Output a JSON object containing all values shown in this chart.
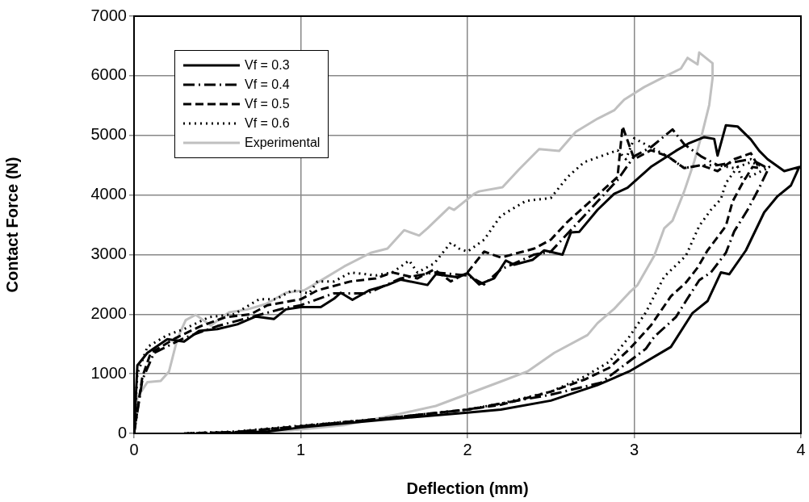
{
  "chart_data": {
    "type": "line",
    "xlabel": "Deflection (mm)",
    "ylabel": "Contact Force (N)",
    "xlim": [
      0,
      4
    ],
    "xticks": [
      0,
      1,
      2,
      3,
      4
    ],
    "ylim": [
      0,
      7000
    ],
    "yticks": [
      0,
      1000,
      2000,
      3000,
      4000,
      5000,
      6000,
      7000
    ],
    "grid": true,
    "legend": "top left",
    "marker": "none",
    "series": [
      {
        "name": "Vf = 0.3",
        "color": "#000000",
        "line_style": "solid",
        "x": [
          0,
          0.02,
          0.08,
          0.2,
          0.3,
          0.39,
          0.5,
          0.62,
          0.73,
          0.84,
          0.91,
          1.0,
          1.12,
          1.2,
          1.24,
          1.31,
          1.41,
          1.52,
          1.6,
          1.76,
          1.81,
          1.94,
          2.0,
          2.07,
          2.16,
          2.23,
          2.28,
          2.39,
          2.46,
          2.57,
          2.62,
          2.67,
          2.78,
          2.88,
          2.96,
          3.1,
          3.25,
          3.33,
          3.42,
          3.48,
          3.5,
          3.55,
          3.62,
          3.7,
          3.75,
          3.8,
          3.9,
          3.99,
          3.94,
          3.86,
          3.78,
          3.67,
          3.57,
          3.52,
          3.44,
          3.35,
          3.22,
          2.97,
          2.78,
          2.5,
          2.2,
          2.0,
          1.5,
          1.0,
          0.8,
          0.5
        ],
        "values": [
          0,
          1140,
          1350,
          1580,
          1540,
          1720,
          1750,
          1830,
          1960,
          1920,
          2080,
          2120,
          2120,
          2260,
          2360,
          2240,
          2400,
          2490,
          2580,
          2490,
          2670,
          2620,
          2690,
          2500,
          2600,
          2900,
          2830,
          2910,
          3070,
          3000,
          3370,
          3380,
          3750,
          4020,
          4120,
          4470,
          4740,
          4870,
          4970,
          4940,
          4660,
          5170,
          5150,
          4930,
          4740,
          4600,
          4400,
          4470,
          4160,
          3980,
          3710,
          3070,
          2670,
          2700,
          2220,
          2020,
          1450,
          1040,
          810,
          550,
          400,
          350,
          230,
          100,
          30,
          0
        ]
      },
      {
        "name": "Vf = 0.4",
        "color": "#000000",
        "line_style": "dashdot",
        "x": [
          0,
          0.05,
          0.12,
          0.3,
          0.5,
          0.7,
          0.9,
          1.0,
          1.2,
          1.4,
          1.6,
          1.8,
          2.0,
          2.1,
          2.2,
          2.4,
          2.5,
          2.6,
          2.7,
          2.8,
          2.9,
          3.0,
          3.1,
          3.23,
          3.3,
          3.4,
          3.5,
          3.6,
          3.7,
          3.8,
          3.81,
          3.75,
          3.68,
          3.6,
          3.55,
          3.46,
          3.39,
          3.31,
          3.25,
          3.12,
          3.07,
          2.8,
          2.5,
          2.0,
          1.5,
          1.0,
          0.6,
          0.3
        ],
        "values": [
          0,
          900,
          1350,
          1600,
          1800,
          1950,
          2100,
          2150,
          2350,
          2350,
          2600,
          2700,
          2650,
          2500,
          2750,
          3000,
          3050,
          3350,
          3650,
          3950,
          4250,
          4650,
          4800,
          5100,
          4850,
          4650,
          4500,
          4550,
          4600,
          4450,
          4470,
          4120,
          3750,
          3390,
          3030,
          2700,
          2570,
          2220,
          1950,
          1620,
          1420,
          850,
          650,
          400,
          250,
          120,
          20,
          0
        ]
      },
      {
        "name": "Vf = 0.5",
        "color": "#000000",
        "line_style": "dashed",
        "x": [
          0,
          0.05,
          0.1,
          0.25,
          0.4,
          0.55,
          0.7,
          0.8,
          1.0,
          1.1,
          1.3,
          1.45,
          1.55,
          1.7,
          1.8,
          1.9,
          2.0,
          2.1,
          2.2,
          2.4,
          2.5,
          2.6,
          2.7,
          2.8,
          2.9,
          2.93,
          3.0,
          3.1,
          3.2,
          3.3,
          3.4,
          3.5,
          3.6,
          3.7,
          3.75,
          3.71,
          3.65,
          3.59,
          3.55,
          3.44,
          3.38,
          3.31,
          3.22,
          3.1,
          2.97,
          2.85,
          2.7,
          2.5,
          2.2,
          2.0,
          1.5,
          1.0,
          0.6,
          0.3
        ],
        "values": [
          0,
          950,
          1350,
          1600,
          1800,
          1950,
          2000,
          2150,
          2250,
          2400,
          2550,
          2600,
          2700,
          2600,
          2750,
          2550,
          2700,
          3050,
          2950,
          3100,
          3250,
          3550,
          3800,
          4050,
          4300,
          5150,
          4600,
          4750,
          4650,
          4450,
          4500,
          4400,
          4600,
          4700,
          4450,
          4470,
          4200,
          3890,
          3480,
          3070,
          2780,
          2530,
          2300,
          1810,
          1410,
          1100,
          900,
          700,
          480,
          400,
          250,
          120,
          20,
          0
        ]
      },
      {
        "name": "Vf = 0.6",
        "color": "#000000",
        "line_style": "dotted",
        "x": [
          0,
          0.02,
          0.08,
          0.2,
          0.3,
          0.45,
          0.6,
          0.75,
          0.85,
          0.95,
          1.05,
          1.1,
          1.2,
          1.3,
          1.45,
          1.55,
          1.65,
          1.7,
          1.8,
          1.9,
          1.95,
          2.0,
          2.1,
          2.2,
          2.35,
          2.5,
          2.6,
          2.7,
          2.8,
          2.9,
          2.95,
          3.0,
          3.1,
          3.2,
          3.3,
          3.4,
          3.5,
          3.6,
          3.7,
          3.8,
          3.65,
          3.62,
          3.55,
          3.52,
          3.46,
          3.39,
          3.31,
          3.18,
          3.07,
          2.97,
          2.85,
          2.7,
          2.5,
          2.2,
          2.0,
          1.5,
          1.0,
          0.6,
          0.3
        ],
        "values": [
          0,
          1000,
          1450,
          1650,
          1750,
          1950,
          2000,
          2250,
          2250,
          2400,
          2350,
          2550,
          2550,
          2700,
          2650,
          2700,
          2900,
          2700,
          2850,
          3200,
          3100,
          3050,
          3250,
          3650,
          3900,
          3950,
          4300,
          4550,
          4650,
          4750,
          4600,
          4950,
          4800,
          4650,
          4450,
          4500,
          4500,
          4450,
          4550,
          4450,
          4250,
          4470,
          4200,
          3930,
          3750,
          3480,
          2980,
          2630,
          2030,
          1620,
          1200,
          950,
          700,
          500,
          400,
          250,
          130,
          30,
          0
        ]
      },
      {
        "name": "Experimental",
        "color": "#c0c0c0",
        "line_style": "solid",
        "x": [
          0,
          0.02,
          0.08,
          0.16,
          0.21,
          0.26,
          0.31,
          0.37,
          0.46,
          0.57,
          0.68,
          0.79,
          0.91,
          1.02,
          1.1,
          1.26,
          1.42,
          1.52,
          1.62,
          1.71,
          1.76,
          1.89,
          1.92,
          2.04,
          2.07,
          2.21,
          2.31,
          2.43,
          2.55,
          2.65,
          2.78,
          2.88,
          2.94,
          3.06,
          3.2,
          3.28,
          3.32,
          3.38,
          3.39,
          3.47,
          3.47,
          3.45,
          3.41,
          3.36,
          3.3,
          3.23,
          3.18,
          3.12,
          3.02,
          2.97,
          2.88,
          2.78,
          2.72,
          2.52,
          2.36,
          2.2,
          2.0,
          1.81,
          1.58,
          1.26,
          0.94,
          0.47
        ],
        "values": [
          0,
          600,
          860,
          880,
          1040,
          1590,
          1900,
          1990,
          1810,
          2030,
          2080,
          2170,
          2360,
          2400,
          2530,
          2800,
          3030,
          3100,
          3410,
          3320,
          3440,
          3790,
          3750,
          4020,
          4060,
          4130,
          4430,
          4770,
          4740,
          5060,
          5280,
          5420,
          5600,
          5810,
          6010,
          6120,
          6300,
          6190,
          6390,
          6210,
          5960,
          5510,
          5060,
          4560,
          4060,
          3570,
          3440,
          2980,
          2490,
          2360,
          2090,
          1850,
          1650,
          1350,
          1040,
          870,
          660,
          460,
          320,
          140,
          50,
          0
        ]
      }
    ]
  }
}
